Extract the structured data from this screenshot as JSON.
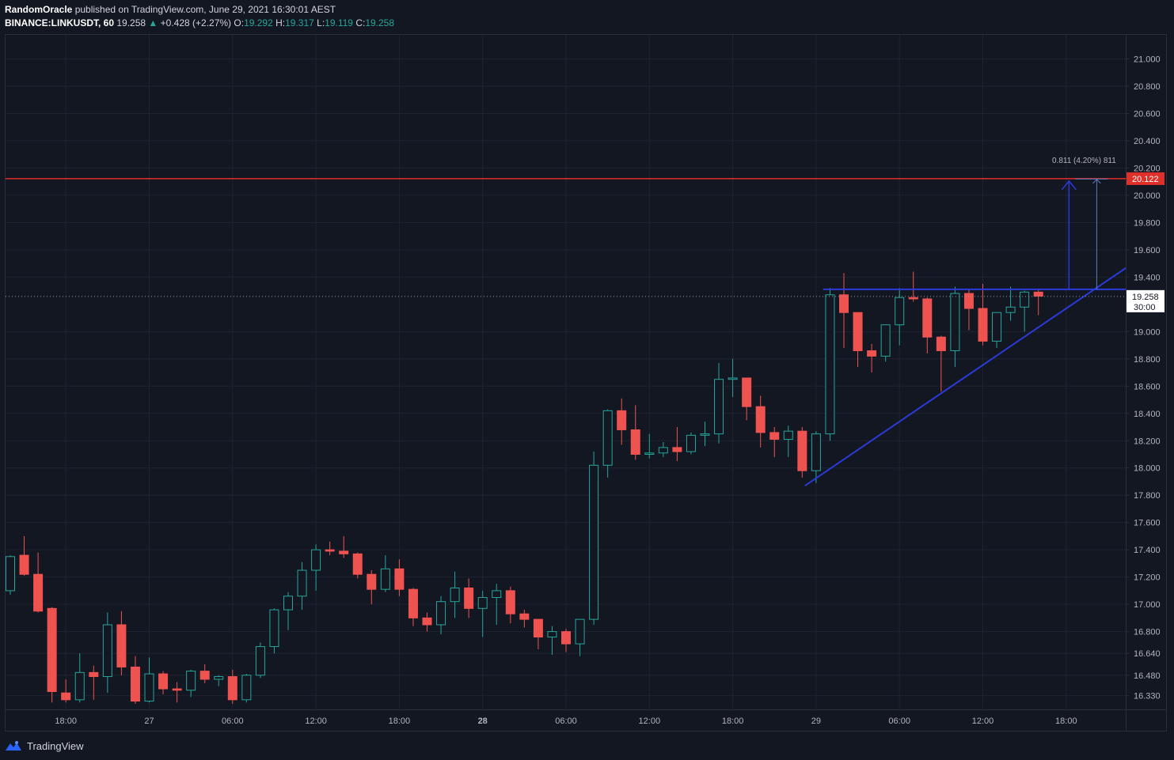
{
  "header": {
    "author": "RandomOracle",
    "published_text": " published on TradingView.com, June 29, 2021 16:30:01 AEST",
    "symbol": "BINANCE:LINKUSDT, 60",
    "last": "19.258",
    "change": "+0.428 (+2.27%)",
    "o_label": "O:",
    "o_value": "19.292",
    "h_label": "H:",
    "h_value": "19.317",
    "l_label": "L:",
    "l_value": "19.119",
    "c_label": "C:",
    "c_value": "19.258"
  },
  "footer": {
    "brand": "TradingView"
  },
  "colors": {
    "background": "#131722",
    "grid": "#1f2330",
    "up": "#26a69a",
    "down": "#ef5350",
    "resistance": "#e0302a",
    "trendline": "#2b3bd9",
    "axis_text": "#b2b5be"
  },
  "chart_data": {
    "type": "candlestick",
    "title": "",
    "ylim": [
      16.27,
      21.09
    ],
    "y_ticks": [
      "21.000",
      "20.800",
      "20.600",
      "20.400",
      "20.200",
      "20.000",
      "19.800",
      "19.600",
      "19.400",
      "19.000",
      "18.800",
      "18.600",
      "18.400",
      "18.200",
      "18.000",
      "17.800",
      "17.600",
      "17.400",
      "17.200",
      "17.000",
      "16.800",
      "16.640",
      "16.480",
      "16.330"
    ],
    "y_tick_values": [
      21.0,
      20.8,
      20.6,
      20.4,
      20.2,
      20.0,
      19.8,
      19.6,
      19.4,
      19.0,
      18.8,
      18.6,
      18.4,
      18.2,
      18.0,
      17.8,
      17.6,
      17.4,
      17.2,
      17.0,
      16.8,
      16.64,
      16.48,
      16.33
    ],
    "x_ticks": [
      {
        "label": "18:00",
        "index": 4,
        "bold": false
      },
      {
        "label": "27",
        "index": 10,
        "bold": false
      },
      {
        "label": "06:00",
        "index": 16,
        "bold": false
      },
      {
        "label": "12:00",
        "index": 22,
        "bold": false
      },
      {
        "label": "18:00",
        "index": 28,
        "bold": false
      },
      {
        "label": "28",
        "index": 34,
        "bold": true
      },
      {
        "label": "06:00",
        "index": 40,
        "bold": false
      },
      {
        "label": "12:00",
        "index": 46,
        "bold": false
      },
      {
        "label": "18:00",
        "index": 52,
        "bold": false
      },
      {
        "label": "29",
        "index": 58,
        "bold": false
      },
      {
        "label": "06:00",
        "index": 64,
        "bold": false
      },
      {
        "label": "12:00",
        "index": 70,
        "bold": false
      },
      {
        "label": "18:00",
        "index": 76,
        "bold": false
      }
    ],
    "candles": [
      [
        17.1,
        17.36,
        17.07,
        17.35
      ],
      [
        17.36,
        17.5,
        17.21,
        17.22
      ],
      [
        17.22,
        17.38,
        16.94,
        16.95
      ],
      [
        16.97,
        16.98,
        16.28,
        16.36
      ],
      [
        16.35,
        16.45,
        16.28,
        16.3
      ],
      [
        16.3,
        16.64,
        16.28,
        16.5
      ],
      [
        16.5,
        16.55,
        16.3,
        16.47
      ],
      [
        16.47,
        16.94,
        16.35,
        16.85
      ],
      [
        16.85,
        16.95,
        16.48,
        16.54
      ],
      [
        16.54,
        16.62,
        16.27,
        16.29
      ],
      [
        16.29,
        16.61,
        16.28,
        16.49
      ],
      [
        16.49,
        16.51,
        16.34,
        16.38
      ],
      [
        16.38,
        16.43,
        16.28,
        16.37
      ],
      [
        16.37,
        16.52,
        16.32,
        16.51
      ],
      [
        16.51,
        16.56,
        16.42,
        16.45
      ],
      [
        16.45,
        16.48,
        16.4,
        16.47
      ],
      [
        16.47,
        16.52,
        16.27,
        16.3
      ],
      [
        16.3,
        16.49,
        16.28,
        16.48
      ],
      [
        16.48,
        16.72,
        16.46,
        16.69
      ],
      [
        16.69,
        16.97,
        16.64,
        16.96
      ],
      [
        16.96,
        17.09,
        16.81,
        17.06
      ],
      [
        17.06,
        17.31,
        16.96,
        17.25
      ],
      [
        17.25,
        17.44,
        17.1,
        17.4
      ],
      [
        17.4,
        17.46,
        17.36,
        17.39
      ],
      [
        17.39,
        17.5,
        17.34,
        17.37
      ],
      [
        17.37,
        17.38,
        17.19,
        17.22
      ],
      [
        17.22,
        17.25,
        17.0,
        17.11
      ],
      [
        17.11,
        17.36,
        17.09,
        17.26
      ],
      [
        17.26,
        17.33,
        17.06,
        17.11
      ],
      [
        17.11,
        17.12,
        16.84,
        16.9
      ],
      [
        16.9,
        16.94,
        16.8,
        16.85
      ],
      [
        16.85,
        17.06,
        16.78,
        17.02
      ],
      [
        17.02,
        17.24,
        16.9,
        17.12
      ],
      [
        17.12,
        17.19,
        16.9,
        16.97
      ],
      [
        16.97,
        17.1,
        16.76,
        17.05
      ],
      [
        17.05,
        17.15,
        16.85,
        17.1
      ],
      [
        17.1,
        17.13,
        16.86,
        16.93
      ],
      [
        16.93,
        16.96,
        16.83,
        16.89
      ],
      [
        16.89,
        16.89,
        16.67,
        16.76
      ],
      [
        16.76,
        16.84,
        16.63,
        16.8
      ],
      [
        16.8,
        16.82,
        16.65,
        16.71
      ],
      [
        16.71,
        16.89,
        16.62,
        16.89
      ],
      [
        16.89,
        18.12,
        16.85,
        18.02
      ],
      [
        18.02,
        18.43,
        17.93,
        18.42
      ],
      [
        18.42,
        18.51,
        18.17,
        18.28
      ],
      [
        18.28,
        18.46,
        18.06,
        18.1
      ],
      [
        18.1,
        18.25,
        18.07,
        18.11
      ],
      [
        18.11,
        18.19,
        18.08,
        18.15
      ],
      [
        18.15,
        18.3,
        18.05,
        18.12
      ],
      [
        18.12,
        18.26,
        18.1,
        18.24
      ],
      [
        18.24,
        18.34,
        18.16,
        18.25
      ],
      [
        18.25,
        18.77,
        18.18,
        18.65
      ],
      [
        18.65,
        18.8,
        18.52,
        18.66
      ],
      [
        18.66,
        18.66,
        18.35,
        18.45
      ],
      [
        18.45,
        18.53,
        18.15,
        18.26
      ],
      [
        18.26,
        18.3,
        18.08,
        18.21
      ],
      [
        18.21,
        18.31,
        18.08,
        18.27
      ],
      [
        18.27,
        18.3,
        17.93,
        17.98
      ],
      [
        17.98,
        18.27,
        17.89,
        18.25
      ],
      [
        18.25,
        19.32,
        18.2,
        19.27
      ],
      [
        19.27,
        19.43,
        18.88,
        19.14
      ],
      [
        19.14,
        19.14,
        18.74,
        18.86
      ],
      [
        18.86,
        18.91,
        18.7,
        18.82
      ],
      [
        18.82,
        19.05,
        18.78,
        19.05
      ],
      [
        19.05,
        19.32,
        18.9,
        19.25
      ],
      [
        19.25,
        19.44,
        19.22,
        19.24
      ],
      [
        19.24,
        19.25,
        18.84,
        18.96
      ],
      [
        18.96,
        18.97,
        18.56,
        18.86
      ],
      [
        18.86,
        19.33,
        18.74,
        19.28
      ],
      [
        19.28,
        19.31,
        19.01,
        19.17
      ],
      [
        19.17,
        19.35,
        18.9,
        18.93
      ],
      [
        18.93,
        19.14,
        18.88,
        19.14
      ],
      [
        19.14,
        19.33,
        19.08,
        19.18
      ],
      [
        19.18,
        19.3,
        19.0,
        19.29
      ],
      [
        19.29,
        19.31,
        19.12,
        19.26
      ]
    ],
    "last_price": 19.258,
    "last_price_label": "19.258",
    "countdown_label": "30:00",
    "resistance": {
      "value": 20.122,
      "label": "20.122"
    },
    "horizontal_support": {
      "value": 19.31,
      "from_index": 58.5,
      "to_index": 80.5
    },
    "trendline": {
      "from": [
        57.2,
        17.87
      ],
      "to": [
        81.5,
        19.55
      ]
    },
    "measure": {
      "label": "0.811 (4.20%) 811",
      "from_index": 76.2,
      "to_index": 78.2,
      "from_price": 19.31,
      "to_price": 20.122
    }
  }
}
